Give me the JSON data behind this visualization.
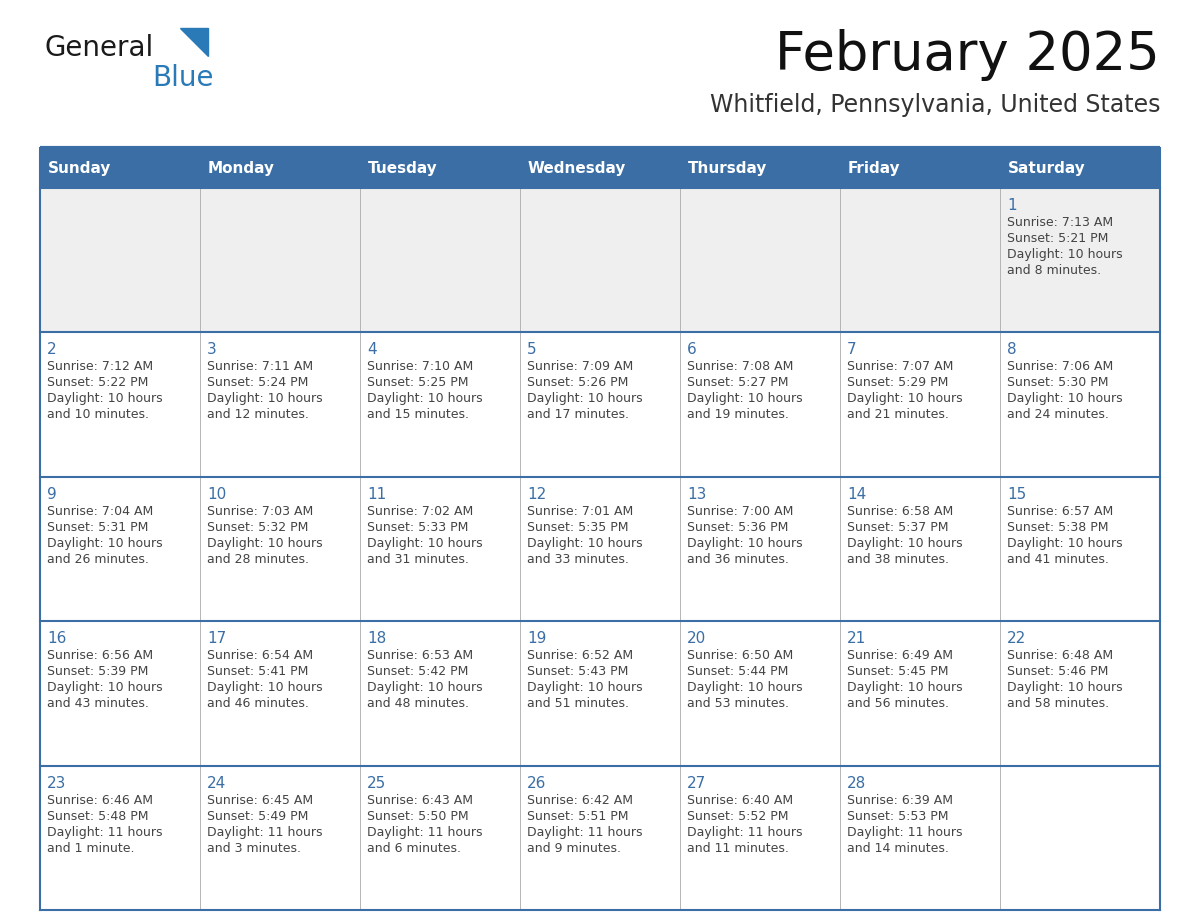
{
  "title": "February 2025",
  "subtitle": "Whitfield, Pennsylvania, United States",
  "days_of_week": [
    "Sunday",
    "Monday",
    "Tuesday",
    "Wednesday",
    "Thursday",
    "Friday",
    "Saturday"
  ],
  "header_bg": "#3a6ea5",
  "header_text": "#ffffff",
  "row0_bg": "#efefef",
  "row_bg": "#ffffff",
  "text_color": "#444444",
  "day_num_color": "#3a6ea5",
  "border_color": "#3a6ea5",
  "thin_line_color": "#3a6ea5",
  "logo_general_color": "#1a1a1a",
  "logo_blue_color": "#2a7ab8",
  "calendar_data": [
    [
      null,
      null,
      null,
      null,
      null,
      null,
      {
        "day": "1",
        "sunrise": "7:13 AM",
        "sunset": "5:21 PM",
        "daylight1": "Daylight: 10 hours",
        "daylight2": "and 8 minutes."
      }
    ],
    [
      {
        "day": "2",
        "sunrise": "7:12 AM",
        "sunset": "5:22 PM",
        "daylight1": "Daylight: 10 hours",
        "daylight2": "and 10 minutes."
      },
      {
        "day": "3",
        "sunrise": "7:11 AM",
        "sunset": "5:24 PM",
        "daylight1": "Daylight: 10 hours",
        "daylight2": "and 12 minutes."
      },
      {
        "day": "4",
        "sunrise": "7:10 AM",
        "sunset": "5:25 PM",
        "daylight1": "Daylight: 10 hours",
        "daylight2": "and 15 minutes."
      },
      {
        "day": "5",
        "sunrise": "7:09 AM",
        "sunset": "5:26 PM",
        "daylight1": "Daylight: 10 hours",
        "daylight2": "and 17 minutes."
      },
      {
        "day": "6",
        "sunrise": "7:08 AM",
        "sunset": "5:27 PM",
        "daylight1": "Daylight: 10 hours",
        "daylight2": "and 19 minutes."
      },
      {
        "day": "7",
        "sunrise": "7:07 AM",
        "sunset": "5:29 PM",
        "daylight1": "Daylight: 10 hours",
        "daylight2": "and 21 minutes."
      },
      {
        "day": "8",
        "sunrise": "7:06 AM",
        "sunset": "5:30 PM",
        "daylight1": "Daylight: 10 hours",
        "daylight2": "and 24 minutes."
      }
    ],
    [
      {
        "day": "9",
        "sunrise": "7:04 AM",
        "sunset": "5:31 PM",
        "daylight1": "Daylight: 10 hours",
        "daylight2": "and 26 minutes."
      },
      {
        "day": "10",
        "sunrise": "7:03 AM",
        "sunset": "5:32 PM",
        "daylight1": "Daylight: 10 hours",
        "daylight2": "and 28 minutes."
      },
      {
        "day": "11",
        "sunrise": "7:02 AM",
        "sunset": "5:33 PM",
        "daylight1": "Daylight: 10 hours",
        "daylight2": "and 31 minutes."
      },
      {
        "day": "12",
        "sunrise": "7:01 AM",
        "sunset": "5:35 PM",
        "daylight1": "Daylight: 10 hours",
        "daylight2": "and 33 minutes."
      },
      {
        "day": "13",
        "sunrise": "7:00 AM",
        "sunset": "5:36 PM",
        "daylight1": "Daylight: 10 hours",
        "daylight2": "and 36 minutes."
      },
      {
        "day": "14",
        "sunrise": "6:58 AM",
        "sunset": "5:37 PM",
        "daylight1": "Daylight: 10 hours",
        "daylight2": "and 38 minutes."
      },
      {
        "day": "15",
        "sunrise": "6:57 AM",
        "sunset": "5:38 PM",
        "daylight1": "Daylight: 10 hours",
        "daylight2": "and 41 minutes."
      }
    ],
    [
      {
        "day": "16",
        "sunrise": "6:56 AM",
        "sunset": "5:39 PM",
        "daylight1": "Daylight: 10 hours",
        "daylight2": "and 43 minutes."
      },
      {
        "day": "17",
        "sunrise": "6:54 AM",
        "sunset": "5:41 PM",
        "daylight1": "Daylight: 10 hours",
        "daylight2": "and 46 minutes."
      },
      {
        "day": "18",
        "sunrise": "6:53 AM",
        "sunset": "5:42 PM",
        "daylight1": "Daylight: 10 hours",
        "daylight2": "and 48 minutes."
      },
      {
        "day": "19",
        "sunrise": "6:52 AM",
        "sunset": "5:43 PM",
        "daylight1": "Daylight: 10 hours",
        "daylight2": "and 51 minutes."
      },
      {
        "day": "20",
        "sunrise": "6:50 AM",
        "sunset": "5:44 PM",
        "daylight1": "Daylight: 10 hours",
        "daylight2": "and 53 minutes."
      },
      {
        "day": "21",
        "sunrise": "6:49 AM",
        "sunset": "5:45 PM",
        "daylight1": "Daylight: 10 hours",
        "daylight2": "and 56 minutes."
      },
      {
        "day": "22",
        "sunrise": "6:48 AM",
        "sunset": "5:46 PM",
        "daylight1": "Daylight: 10 hours",
        "daylight2": "and 58 minutes."
      }
    ],
    [
      {
        "day": "23",
        "sunrise": "6:46 AM",
        "sunset": "5:48 PM",
        "daylight1": "Daylight: 11 hours",
        "daylight2": "and 1 minute."
      },
      {
        "day": "24",
        "sunrise": "6:45 AM",
        "sunset": "5:49 PM",
        "daylight1": "Daylight: 11 hours",
        "daylight2": "and 3 minutes."
      },
      {
        "day": "25",
        "sunrise": "6:43 AM",
        "sunset": "5:50 PM",
        "daylight1": "Daylight: 11 hours",
        "daylight2": "and 6 minutes."
      },
      {
        "day": "26",
        "sunrise": "6:42 AM",
        "sunset": "5:51 PM",
        "daylight1": "Daylight: 11 hours",
        "daylight2": "and 9 minutes."
      },
      {
        "day": "27",
        "sunrise": "6:40 AM",
        "sunset": "5:52 PM",
        "daylight1": "Daylight: 11 hours",
        "daylight2": "and 11 minutes."
      },
      {
        "day": "28",
        "sunrise": "6:39 AM",
        "sunset": "5:53 PM",
        "daylight1": "Daylight: 11 hours",
        "daylight2": "and 14 minutes."
      },
      null
    ]
  ]
}
